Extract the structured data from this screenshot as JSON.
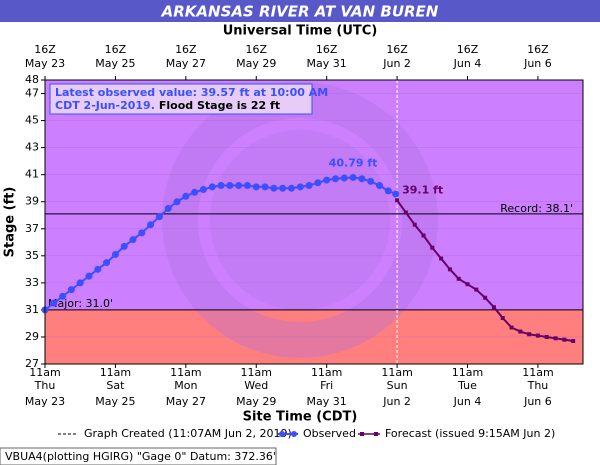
{
  "chart_data": {
    "type": "line",
    "title": "ARKANSAS RIVER AT VAN BUREN",
    "top_axis_title": "Universal Time (UTC)",
    "x_label": "Site Time (CDT)",
    "y_label": "Stage (ft)",
    "xlim": [
      0,
      15.28
    ],
    "ylim": [
      27,
      48
    ],
    "yticks": [
      27,
      29,
      31,
      33,
      35,
      37,
      39,
      41,
      43,
      45,
      47,
      48
    ],
    "xticks": [
      {
        "value": 0,
        "label": "11am",
        "weekday": "Thu",
        "date": "May 23"
      },
      {
        "value": 2,
        "label": "11am",
        "weekday": "Sat",
        "date": "May 25"
      },
      {
        "value": 4,
        "label": "11am",
        "weekday": "Mon",
        "date": "May 27"
      },
      {
        "value": 6,
        "label": "11am",
        "weekday": "Wed",
        "date": "May 29"
      },
      {
        "value": 8,
        "label": "11am",
        "weekday": "Fri",
        "date": "May 31"
      },
      {
        "value": 10,
        "label": "11am",
        "weekday": "Sun",
        "date": "Jun 2"
      },
      {
        "value": 12,
        "label": "11am",
        "weekday": "Tue",
        "date": "Jun 4"
      },
      {
        "value": 14,
        "label": "11am",
        "weekday": "Thu",
        "date": "Jun 6"
      }
    ],
    "top_ticks": [
      {
        "value": 0,
        "label": "16Z",
        "date": "May 23"
      },
      {
        "value": 2,
        "label": "16Z",
        "date": "May 25"
      },
      {
        "value": 4,
        "label": "16Z",
        "date": "May 27"
      },
      {
        "value": 6,
        "label": "16Z",
        "date": "May 29"
      },
      {
        "value": 8,
        "label": "16Z",
        "date": "May 31"
      },
      {
        "value": 10,
        "label": "16Z",
        "date": "Jun  2"
      },
      {
        "value": 12,
        "label": "16Z",
        "date": "Jun  4"
      },
      {
        "value": 14,
        "label": "16Z",
        "date": "Jun  6"
      }
    ],
    "background_color": "#cc80ff",
    "below_major_color": "#ff7f7f",
    "thresholds": [
      {
        "value": 38.1,
        "label": "Record: 38.1'"
      },
      {
        "value": 31.0,
        "label": "Major: 31.0'"
      }
    ],
    "created": {
      "x": 10,
      "name": "Graph Created (11:07AM Jun 2, 2019)"
    },
    "series": [
      {
        "name": "Observed",
        "color": "#3a50ff",
        "marker": "circle",
        "x": [
          0,
          0.25,
          0.5,
          0.75,
          1,
          1.25,
          1.5,
          1.75,
          2,
          2.25,
          2.5,
          2.75,
          3,
          3.25,
          3.5,
          3.75,
          4,
          4.25,
          4.5,
          4.75,
          5,
          5.25,
          5.5,
          5.75,
          6,
          6.25,
          6.5,
          6.75,
          7,
          7.25,
          7.5,
          7.75,
          8,
          8.25,
          8.5,
          8.75,
          9,
          9.25,
          9.5,
          9.75,
          9.96
        ],
        "values": [
          31.0,
          31.5,
          32.0,
          32.5,
          33.0,
          33.5,
          34.0,
          34.5,
          35.1,
          35.7,
          36.2,
          36.7,
          37.3,
          37.9,
          38.5,
          39.0,
          39.4,
          39.7,
          39.9,
          40.1,
          40.2,
          40.2,
          40.2,
          40.2,
          40.1,
          40.1,
          40.0,
          40.0,
          40.0,
          40.1,
          40.2,
          40.4,
          40.6,
          40.7,
          40.75,
          40.79,
          40.7,
          40.5,
          40.2,
          39.8,
          39.57
        ]
      },
      {
        "name": "Forecast (issued 9:15AM Jun 2)",
        "color": "#660066",
        "marker": "square",
        "x": [
          10,
          10.25,
          10.5,
          10.75,
          11,
          11.25,
          11.5,
          11.75,
          12,
          12.25,
          12.5,
          12.75,
          13,
          13.25,
          13.5,
          13.75,
          14,
          14.25,
          14.5,
          14.75,
          15
        ],
        "values": [
          39.1,
          38.2,
          37.3,
          36.5,
          35.6,
          34.8,
          34.0,
          33.3,
          32.9,
          32.5,
          31.9,
          31.2,
          30.4,
          29.7,
          29.4,
          29.2,
          29.1,
          29.0,
          28.9,
          28.8,
          28.7
        ]
      }
    ],
    "annotations": [
      {
        "text": "40.79 ft",
        "x": 8.75,
        "y": 40.79,
        "color": "#3a50ff"
      },
      {
        "text": "39.1 ft",
        "x": 10,
        "y": 39.1,
        "color": "#660066"
      }
    ],
    "info": [
      "Latest observed value: 39.57 ft at 10:00 AM",
      "CDT 2-Jun-2019.",
      "Flood Stage is 22 ft"
    ],
    "footer": "VBUA4(plotting HGIRG) \"Gage 0\" Datum: 372.36'"
  }
}
